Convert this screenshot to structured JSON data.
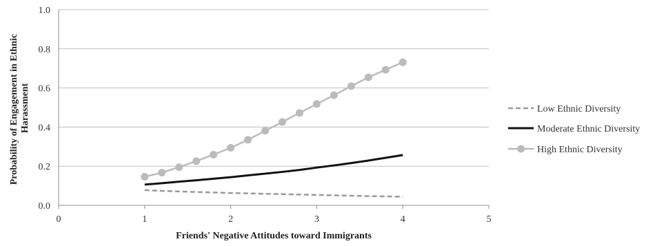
{
  "chart_data": {
    "type": "line",
    "xlabel": "Friends' Negative Attitudes toward Immigrants",
    "ylabel_lines": [
      "Probability of Engagement in Ethnic",
      "Harassment"
    ],
    "xlim": [
      0,
      5
    ],
    "ylim": [
      0,
      1
    ],
    "xticks": [
      "0",
      "1",
      "2",
      "3",
      "4",
      "5"
    ],
    "yticks": [
      "0.0",
      "0.2",
      "0.4",
      "0.6",
      "0.8",
      "1.0"
    ],
    "grid": "horizontal",
    "legend_position": "right",
    "x": [
      1.0,
      1.2,
      1.4,
      1.6,
      1.8,
      2.0,
      2.2,
      2.4,
      2.6,
      2.8,
      3.0,
      3.2,
      3.4,
      3.6,
      3.8,
      4.0
    ],
    "series": [
      {
        "name": "Low Ethnic Diversity",
        "style": "dashed",
        "color": "#999999",
        "values": [
          0.078,
          0.074,
          0.071,
          0.068,
          0.066,
          0.063,
          0.061,
          0.059,
          0.057,
          0.055,
          0.053,
          0.051,
          0.049,
          0.047,
          0.046,
          0.044
        ]
      },
      {
        "name": "Moderate Ethnic Diversity",
        "style": "solid",
        "color": "#111111",
        "values": [
          0.106,
          0.113,
          0.121,
          0.128,
          0.136,
          0.144,
          0.153,
          0.162,
          0.171,
          0.181,
          0.193,
          0.204,
          0.216,
          0.229,
          0.243,
          0.257
        ]
      },
      {
        "name": "High Ethnic Diversity",
        "style": "solid-markers",
        "color": "#bbbbbb",
        "values": [
          0.146,
          0.167,
          0.195,
          0.226,
          0.259,
          0.294,
          0.335,
          0.381,
          0.426,
          0.472,
          0.518,
          0.563,
          0.609,
          0.654,
          0.693,
          0.731
        ]
      }
    ]
  }
}
